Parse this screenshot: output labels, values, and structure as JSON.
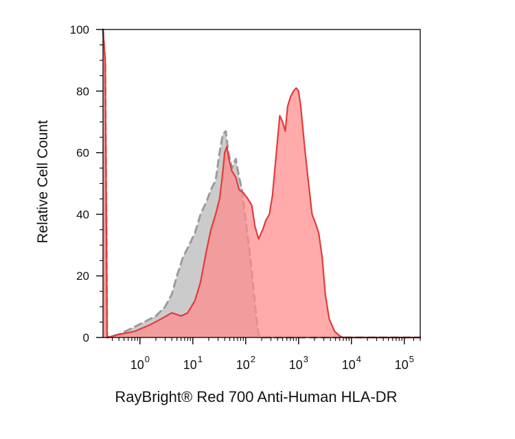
{
  "chart_data": {
    "type": "area",
    "x_scale": "log",
    "xlabel": "RayBright® Red 700 Anti-Human HLA-DR",
    "ylabel": "Relative Cell Count",
    "x_ticks": [
      {
        "value": 1,
        "base": "10",
        "exp": "0"
      },
      {
        "value": 10,
        "base": "10",
        "exp": "1"
      },
      {
        "value": 100,
        "base": "10",
        "exp": "2"
      },
      {
        "value": 1000,
        "base": "10",
        "exp": "3"
      },
      {
        "value": 10000,
        "base": "10",
        "exp": "4"
      },
      {
        "value": 100000,
        "base": "10",
        "exp": "5"
      }
    ],
    "y_ticks": [
      {
        "value": 0,
        "label": "0"
      },
      {
        "value": 20,
        "label": "20"
      },
      {
        "value": 40,
        "label": "40"
      },
      {
        "value": 60,
        "label": "60"
      },
      {
        "value": 80,
        "label": "80"
      },
      {
        "value": 100,
        "label": "100"
      }
    ],
    "xlim": [
      0.2,
      200000
    ],
    "ylim": [
      0,
      100
    ],
    "grid": false,
    "series": [
      {
        "color": "#9b9b9b",
        "fill": "#c8c8c8",
        "style": "dashed",
        "points": [
          [
            0.2,
            100
          ],
          [
            0.22,
            90
          ],
          [
            0.24,
            0
          ],
          [
            0.4,
            1
          ],
          [
            0.7,
            3
          ],
          [
            1.2,
            5
          ],
          [
            2,
            7
          ],
          [
            3,
            10
          ],
          [
            4,
            14
          ],
          [
            5,
            20
          ],
          [
            6.5,
            26
          ],
          [
            8.5,
            30
          ],
          [
            11,
            34
          ],
          [
            14,
            40
          ],
          [
            18,
            44
          ],
          [
            22,
            48
          ],
          [
            27,
            51
          ],
          [
            32,
            60
          ],
          [
            37,
            66
          ],
          [
            42,
            67
          ],
          [
            47,
            60
          ],
          [
            55,
            55
          ],
          [
            65,
            58
          ],
          [
            75,
            52
          ],
          [
            85,
            48
          ],
          [
            100,
            38
          ],
          [
            120,
            27
          ],
          [
            140,
            16
          ],
          [
            160,
            6
          ],
          [
            175,
            1
          ],
          [
            190,
            0
          ],
          [
            200000,
            0
          ]
        ]
      },
      {
        "color": "#e23a3a",
        "fill": "#ff8b8b",
        "style": "solid",
        "points": [
          [
            0.2,
            100
          ],
          [
            0.22,
            90
          ],
          [
            0.24,
            0
          ],
          [
            0.4,
            1
          ],
          [
            0.8,
            2
          ],
          [
            1.5,
            4
          ],
          [
            2.5,
            6
          ],
          [
            4,
            8
          ],
          [
            6,
            7
          ],
          [
            8,
            8
          ],
          [
            11,
            12
          ],
          [
            14,
            18
          ],
          [
            18,
            28
          ],
          [
            22,
            35
          ],
          [
            27,
            40
          ],
          [
            32,
            45
          ],
          [
            36,
            52
          ],
          [
            40,
            60
          ],
          [
            44,
            62
          ],
          [
            48,
            58
          ],
          [
            55,
            54
          ],
          [
            65,
            52
          ],
          [
            75,
            48
          ],
          [
            90,
            47
          ],
          [
            110,
            45
          ],
          [
            130,
            43
          ],
          [
            150,
            36
          ],
          [
            175,
            32
          ],
          [
            210,
            35
          ],
          [
            240,
            38
          ],
          [
            280,
            40
          ],
          [
            320,
            46
          ],
          [
            380,
            60
          ],
          [
            440,
            72
          ],
          [
            500,
            70
          ],
          [
            560,
            67
          ],
          [
            620,
            75
          ],
          [
            700,
            78
          ],
          [
            800,
            80
          ],
          [
            900,
            81
          ],
          [
            1000,
            80
          ],
          [
            1100,
            75
          ],
          [
            1300,
            62
          ],
          [
            1500,
            52
          ],
          [
            1800,
            40
          ],
          [
            2100,
            37
          ],
          [
            2400,
            34
          ],
          [
            2800,
            26
          ],
          [
            3200,
            14
          ],
          [
            3800,
            6
          ],
          [
            4800,
            2
          ],
          [
            6000,
            0.5
          ],
          [
            7000,
            0
          ],
          [
            200000,
            0
          ]
        ]
      }
    ]
  }
}
